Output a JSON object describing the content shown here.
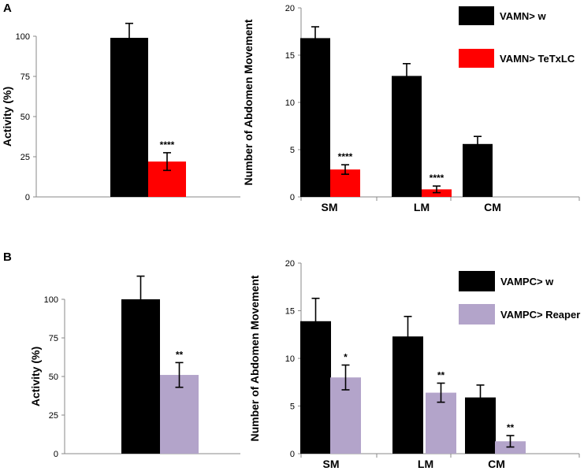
{
  "panels": {
    "A": "A",
    "B": "B"
  },
  "chart_data": [
    {
      "id": "A-activity",
      "type": "bar",
      "ylabel": "Activity (%)",
      "ylim": [
        0,
        100
      ],
      "yticks": [
        "0",
        "25",
        "50",
        "75",
        "100"
      ],
      "categories": [
        ""
      ],
      "series": [
        {
          "name": "VAMN> w",
          "color": "#000000",
          "values": [
            99
          ],
          "errors": [
            9
          ]
        },
        {
          "name": "VAMN> TeTxLC",
          "color": "#ff0000",
          "values": [
            22
          ],
          "errors": [
            5.5
          ]
        }
      ],
      "annotations": [
        {
          "series": 1,
          "index": 0,
          "text": "****"
        }
      ]
    },
    {
      "id": "A-abdomen",
      "type": "bar",
      "ylabel": "Number of Abdomen Movement",
      "ylim": [
        0,
        20
      ],
      "yticks": [
        "0",
        "5",
        "10",
        "15",
        "20"
      ],
      "categories": [
        "SM",
        "LM",
        "CM"
      ],
      "series": [
        {
          "name": "VAMN> w",
          "color": "#000000",
          "values": [
            16.8,
            12.8,
            5.6
          ],
          "errors": [
            1.2,
            1.3,
            0.8
          ]
        },
        {
          "name": "VAMN> TeTxLC",
          "color": "#ff0000",
          "values": [
            2.9,
            0.8,
            0
          ],
          "errors": [
            0.5,
            0.35,
            0
          ]
        }
      ],
      "annotations": [
        {
          "series": 1,
          "index": 0,
          "text": "****"
        },
        {
          "series": 1,
          "index": 1,
          "text": "****"
        }
      ],
      "legend": [
        "VAMN> w",
        "VAMN> TeTxLC"
      ]
    },
    {
      "id": "B-activity",
      "type": "bar",
      "ylabel": "Activity (%)",
      "ylim": [
        0,
        100
      ],
      "yticks": [
        "0",
        "25",
        "50",
        "75",
        "100"
      ],
      "categories": [
        ""
      ],
      "series": [
        {
          "name": "VAMPC> w",
          "color": "#000000",
          "values": [
            100
          ],
          "errors": [
            15
          ]
        },
        {
          "name": "VAMPC> Reaper",
          "color": "#b3a4ca",
          "values": [
            51
          ],
          "errors": [
            8
          ]
        }
      ],
      "annotations": [
        {
          "series": 1,
          "index": 0,
          "text": "**"
        }
      ]
    },
    {
      "id": "B-abdomen",
      "type": "bar",
      "ylabel": "Number of Abdomen Movement",
      "ylim": [
        0,
        20
      ],
      "yticks": [
        "0",
        "5",
        "10",
        "15",
        "20"
      ],
      "categories": [
        "SM",
        "LM",
        "CM"
      ],
      "series": [
        {
          "name": "VAMPC> w",
          "color": "#000000",
          "values": [
            13.9,
            12.3,
            5.9
          ],
          "errors": [
            2.4,
            2.1,
            1.3
          ]
        },
        {
          "name": "VAMPC> Reaper",
          "color": "#b3a4ca",
          "values": [
            8.0,
            6.4,
            1.3
          ],
          "errors": [
            1.3,
            1.0,
            0.6
          ]
        }
      ],
      "annotations": [
        {
          "series": 1,
          "index": 0,
          "text": "*"
        },
        {
          "series": 1,
          "index": 1,
          "text": "**"
        },
        {
          "series": 1,
          "index": 2,
          "text": "**"
        }
      ],
      "legend": [
        "VAMPC> w",
        "VAMPC> Reaper"
      ]
    }
  ]
}
